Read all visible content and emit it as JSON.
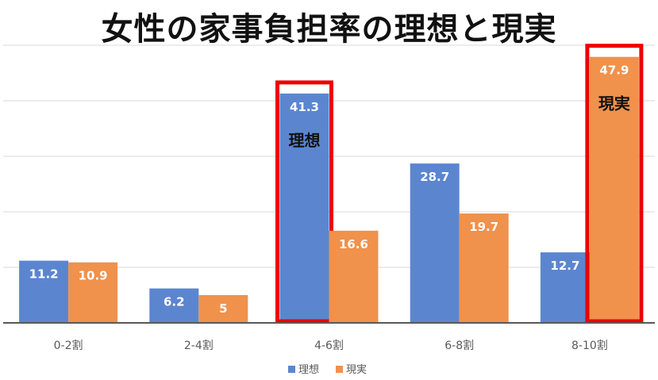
{
  "chart_data": {
    "type": "bar",
    "title": "女性の家事負担率の理想と現実",
    "categories": [
      "0-2割",
      "2-4割",
      "4-6割",
      "6-8割",
      "8-10割"
    ],
    "series": [
      {
        "name": "理想",
        "color": "#5b86cf",
        "values": [
          11.2,
          6.2,
          41.3,
          28.7,
          12.7
        ],
        "labels": [
          "11.2",
          "6.2",
          "41.3",
          "28.7",
          "12.7"
        ]
      },
      {
        "name": "現実",
        "color": "#f0914c",
        "values": [
          10.9,
          5,
          16.6,
          19.7,
          47.9
        ],
        "labels": [
          "10.9",
          "5",
          "16.6",
          "19.7",
          "47.9"
        ]
      }
    ],
    "ylim": [
      0,
      50
    ],
    "grid": true,
    "legend_position": "bottom",
    "highlight_color": "#ee0000",
    "annotations": [
      {
        "text": "理想",
        "category": "4-6割",
        "series": "理想"
      },
      {
        "text": "現実",
        "category": "8-10割",
        "series": "現実"
      }
    ]
  }
}
